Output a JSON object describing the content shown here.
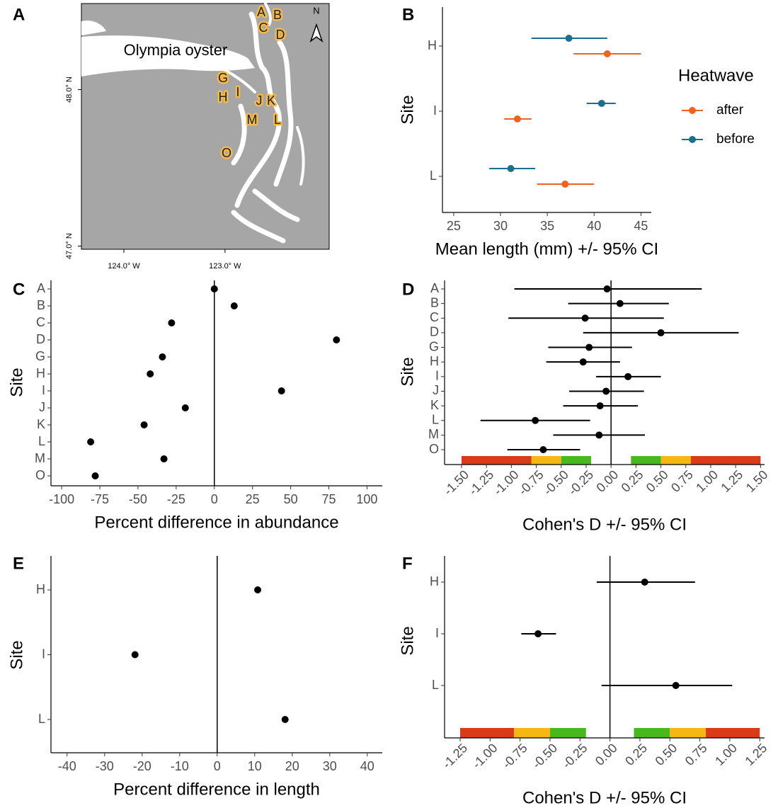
{
  "chart_data": [
    {
      "type": "map",
      "title": "A",
      "annotation": "Olympia oyster",
      "sites": [
        "A",
        "B",
        "C",
        "D",
        "G",
        "H",
        "I",
        "J",
        "K",
        "L",
        "M",
        "O"
      ],
      "xlim": [
        -124.42,
        -121.97
      ],
      "ylim": [
        46.98,
        48.55
      ],
      "xticks": [
        {
          "value": -124.0,
          "label": "124.0° W"
        },
        {
          "value": -123.0,
          "label": "123.0° W"
        }
      ],
      "yticks": [
        {
          "value": 47.0,
          "label": "47.0° N"
        },
        {
          "value": 48.0,
          "label": "48.0° N"
        }
      ],
      "north_label": "N"
    },
    {
      "type": "dot-errorbar",
      "title": "B",
      "categories": [
        "H",
        "I",
        "L"
      ],
      "series": [
        {
          "name": "after",
          "color": "#f0621f",
          "values": [
            41.4,
            31.8,
            36.9
          ],
          "lower": [
            37.8,
            30.4,
            33.9
          ],
          "upper": [
            45.0,
            33.3,
            40.0
          ]
        },
        {
          "name": "before",
          "color": "#1b6f8e",
          "values": [
            37.3,
            40.8,
            31.1
          ],
          "lower": [
            33.3,
            39.2,
            28.8
          ],
          "upper": [
            41.4,
            42.3,
            33.7
          ]
        }
      ],
      "xlim": [
        23.8,
        46.1
      ],
      "xticks": [
        25,
        30,
        35,
        40,
        45
      ],
      "xlabel": "Mean length (mm) +/- 95% CI",
      "ylabel": "Site",
      "legend_title": "Heatwave",
      "legend": "right"
    },
    {
      "type": "dot",
      "title": "C",
      "categories": [
        "A",
        "B",
        "C",
        "D",
        "G",
        "H",
        "I",
        "J",
        "K",
        "L",
        "M",
        "O"
      ],
      "values": [
        0,
        13,
        -28,
        80,
        -34,
        -42,
        44,
        -19,
        -46,
        -81,
        -33,
        -78
      ],
      "color": "#000000",
      "xlim": [
        -107,
        110
      ],
      "xticks": [
        -100,
        -75,
        -50,
        -25,
        0,
        25,
        50,
        75,
        100
      ],
      "reference_line": 0,
      "xlabel": "Percent difference in abundance",
      "ylabel": "Site"
    },
    {
      "type": "dot-errorbar",
      "title": "D",
      "categories": [
        "A",
        "B",
        "C",
        "D",
        "G",
        "H",
        "I",
        "J",
        "K",
        "L",
        "M",
        "O"
      ],
      "color": "#000000",
      "values": [
        -0.04,
        0.09,
        -0.26,
        0.5,
        -0.22,
        -0.28,
        0.17,
        -0.05,
        -0.11,
        -0.76,
        -0.12,
        -0.68
      ],
      "lower": [
        -0.97,
        -0.43,
        -1.03,
        -0.28,
        -0.63,
        -0.65,
        -0.15,
        -0.42,
        -0.48,
        -1.31,
        -0.58,
        -1.04
      ],
      "upper": [
        0.91,
        0.58,
        0.53,
        1.28,
        0.21,
        0.09,
        0.5,
        0.33,
        0.27,
        -0.21,
        0.34,
        -0.31
      ],
      "xlim": [
        -1.67,
        1.54
      ],
      "xticks": [
        {
          "value": -1.5,
          "label": "-1.50"
        },
        {
          "value": -1.25,
          "label": "-1.25"
        },
        {
          "value": -1.0,
          "label": "-1.00"
        },
        {
          "value": -0.75,
          "label": "-0.75"
        },
        {
          "value": -0.5,
          "label": "-0.50"
        },
        {
          "value": -0.25,
          "label": "-0.25"
        },
        {
          "value": 0,
          "label": "0.00"
        },
        {
          "value": 0.25,
          "label": "0.25"
        },
        {
          "value": 0.5,
          "label": "0.50"
        },
        {
          "value": 0.75,
          "label": "0.75"
        },
        {
          "value": 1.0,
          "label": "1.00"
        },
        {
          "value": 1.25,
          "label": "1.25"
        },
        {
          "value": 1.5,
          "label": "1.50"
        }
      ],
      "reference_line": 0,
      "bands": [
        {
          "from": -1.5,
          "to": -0.8,
          "color": "#d93a1a"
        },
        {
          "from": -0.8,
          "to": -0.5,
          "color": "#f5b714"
        },
        {
          "from": -0.5,
          "to": -0.2,
          "color": "#49b81c"
        },
        {
          "from": 0.2,
          "to": 0.5,
          "color": "#49b81c"
        },
        {
          "from": 0.5,
          "to": 0.8,
          "color": "#f5b714"
        },
        {
          "from": 0.8,
          "to": 1.5,
          "color": "#d93a1a"
        }
      ],
      "xlabel": "Cohen's D +/- 95% CI",
      "ylabel": "Site"
    },
    {
      "type": "dot",
      "title": "E",
      "categories": [
        "H",
        "I",
        "L"
      ],
      "values": [
        10.8,
        -21.9,
        18.1
      ],
      "color": "#000000",
      "xlim": [
        -44.3,
        44
      ],
      "xticks": [
        -40,
        -30,
        -20,
        -10,
        0,
        10,
        20,
        30,
        40
      ],
      "reference_line": 0,
      "xlabel": "Percent difference in length",
      "ylabel": "Site"
    },
    {
      "type": "dot-errorbar",
      "title": "F",
      "categories": [
        "H",
        "I",
        "L"
      ],
      "color": "#000000",
      "values": [
        0.29,
        -0.6,
        0.55
      ],
      "lower": [
        -0.11,
        -0.74,
        -0.07
      ],
      "upper": [
        0.71,
        -0.45,
        1.02
      ],
      "xlim": [
        -1.38,
        1.29
      ],
      "xticks": [
        {
          "value": -1.25,
          "label": "-1.25"
        },
        {
          "value": -1.0,
          "label": "-1.00"
        },
        {
          "value": -0.75,
          "label": "-0.75"
        },
        {
          "value": -0.5,
          "label": "-0.50"
        },
        {
          "value": -0.25,
          "label": "-0.25"
        },
        {
          "value": 0,
          "label": "0.00"
        },
        {
          "value": 0.25,
          "label": "0.25"
        },
        {
          "value": 0.5,
          "label": "0.50"
        },
        {
          "value": 0.75,
          "label": "0.75"
        },
        {
          "value": 1.0,
          "label": "1.00"
        },
        {
          "value": 1.25,
          "label": "1.25"
        }
      ],
      "reference_line": 0,
      "bands": [
        {
          "from": -1.25,
          "to": -0.8,
          "color": "#d93a1a"
        },
        {
          "from": -0.8,
          "to": -0.5,
          "color": "#f5b714"
        },
        {
          "from": -0.5,
          "to": -0.2,
          "color": "#49b81c"
        },
        {
          "from": 0.2,
          "to": 0.5,
          "color": "#49b81c"
        },
        {
          "from": 0.5,
          "to": 0.8,
          "color": "#f5b714"
        },
        {
          "from": 0.8,
          "to": 1.25,
          "color": "#d93a1a"
        }
      ],
      "xlabel": "Cohen's D +/- 95% CI",
      "ylabel": "Site"
    }
  ]
}
